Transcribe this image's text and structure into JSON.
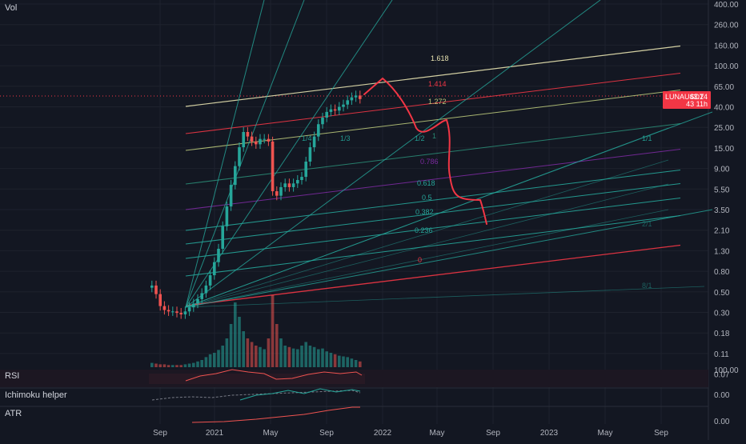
{
  "panes": {
    "main_label": "Vol",
    "rsi_label": "RSI",
    "ichimoku_label": "Ichimoku helper",
    "atr_label": "ATR"
  },
  "ticker": {
    "symbol": "LUNAUSDT",
    "price": "43.24",
    "countdown": "43 11h"
  },
  "colors": {
    "background": "#131722",
    "up": "#26a69a",
    "down": "#ef5350",
    "price_badge": "#f23645",
    "drawing": "#f23645"
  },
  "chart_data": {
    "type": "candlestick",
    "y_scale": "log",
    "y_ticks": [
      "400.00",
      "260.00",
      "160.00",
      "100.00",
      "65.00",
      "40.00",
      "25.00",
      "15.00",
      "9.00",
      "5.50",
      "3.50",
      "2.10",
      "1.30",
      "0.80",
      "0.50",
      "0.30",
      "0.18",
      "0.11",
      "0.07"
    ],
    "x_ticks": [
      "Sep",
      "2021",
      "May",
      "Sep",
      "2022",
      "May",
      "Sep",
      "2023",
      "May",
      "Sep"
    ],
    "rsi_ticks": [
      "100.00"
    ],
    "ichimoku_ticks": [
      "0.00"
    ],
    "atr_ticks": [
      "0.00"
    ],
    "fib_labels": [
      "1.618",
      "1.414",
      "1.272",
      "1",
      "0.786",
      "0.618",
      "0.5",
      "0.382",
      "0.236",
      "0"
    ],
    "fan_labels": [
      "1/4",
      "1/3",
      "1/2",
      "1/1",
      "2/1",
      "8/1"
    ],
    "last_price": 43.24
  }
}
